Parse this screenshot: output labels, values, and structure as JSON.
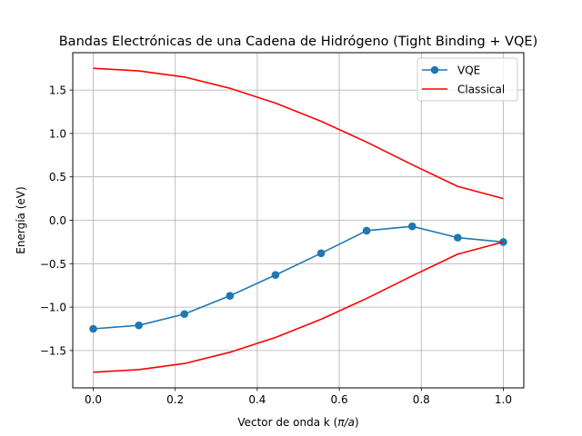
{
  "chart_data": {
    "type": "line",
    "title": "Bandas Electrónicas de una Cadena de Hidrógeno (Tight Binding + VQE)",
    "xlabel_prefix": "Vector de onda k (",
    "xlabel_unit": "π/a",
    "xlabel_suffix": ")",
    "ylabel": "Energía (eV)",
    "xlim": [
      -0.05,
      1.05
    ],
    "ylim": [
      -1.93,
      1.93
    ],
    "xticks": [
      0.0,
      0.2,
      0.4,
      0.6,
      0.8,
      1.0
    ],
    "xtick_labels": [
      "0.0",
      "0.2",
      "0.4",
      "0.6",
      "0.8",
      "1.0"
    ],
    "yticks": [
      -1.5,
      -1.0,
      -0.5,
      0.0,
      0.5,
      1.0,
      1.5
    ],
    "ytick_labels": [
      "−1.5",
      "−1.0",
      "−0.5",
      "0.0",
      "0.5",
      "1.0",
      "1.5"
    ],
    "grid": true,
    "legend_position": "top-right",
    "x": [
      0.0,
      0.1111,
      0.2222,
      0.3333,
      0.4444,
      0.5556,
      0.6667,
      0.7778,
      0.8889,
      1.0
    ],
    "series": [
      {
        "name": "VQE",
        "color": "#1f77b4",
        "marker": "circle",
        "values": [
          -1.25,
          -1.21,
          -1.08,
          -0.87,
          -0.63,
          -0.38,
          -0.12,
          -0.07,
          -0.2,
          -0.25
        ]
      },
      {
        "name": "Classical",
        "color": "#ff0000",
        "marker": "none",
        "values": [
          1.75,
          1.72,
          1.65,
          1.52,
          1.35,
          1.14,
          0.9,
          0.64,
          0.39,
          0.25
        ]
      },
      {
        "name": "",
        "color": "#ff0000",
        "marker": "none",
        "values": [
          -1.75,
          -1.72,
          -1.65,
          -1.52,
          -1.35,
          -1.14,
          -0.9,
          -0.64,
          -0.39,
          -0.25
        ]
      }
    ]
  }
}
